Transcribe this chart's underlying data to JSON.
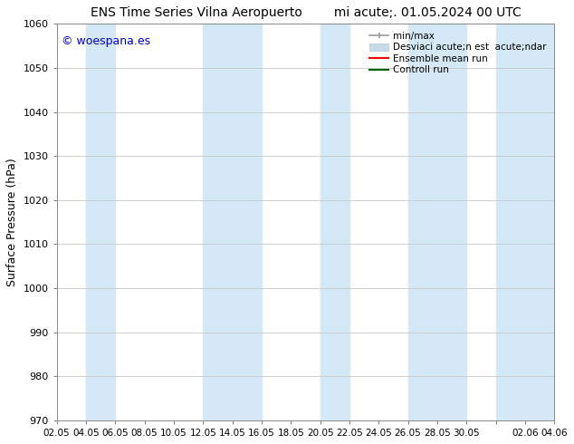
{
  "title": "ENS Time Series Vilna Aeropuerto        mi acute;. 01.05.2024 00 UTC",
  "ylabel": "Surface Pressure (hPa)",
  "ylim": [
    970,
    1060
  ],
  "yticks": [
    970,
    980,
    990,
    1000,
    1010,
    1020,
    1030,
    1040,
    1050,
    1060
  ],
  "xtick_labels": [
    "02.05",
    "04.05",
    "06.05",
    "08.05",
    "10.05",
    "12.05",
    "14.05",
    "16.05",
    "18.05",
    "20.05",
    "22.05",
    "24.05",
    "26.05",
    "28.05",
    "30.05",
    "",
    "02.06",
    "04.06"
  ],
  "watermark": "© woespana.es",
  "watermark_color": "#0000cc",
  "bg_color": "#ffffff",
  "plot_bg_color": "#ffffff",
  "grid_color": "#c8c8c8",
  "band_color": "#d4e8f5",
  "band_alpha": 1.0,
  "legend_items": [
    {
      "label": "min/max",
      "color": "#aaaaaa"
    },
    {
      "label": "Desviaci acute;n est  acute;ndar",
      "color": "#c8dce8"
    },
    {
      "label": "Ensemble mean run",
      "color": "#ff0000"
    },
    {
      "label": "Controll run",
      "color": "#006600"
    }
  ],
  "band_tick_ranges": [
    [
      1,
      2
    ],
    [
      5,
      6
    ],
    [
      6,
      7
    ],
    [
      9,
      10
    ],
    [
      12,
      13
    ],
    [
      13,
      14
    ],
    [
      15,
      17
    ]
  ],
  "title_fontsize": 10,
  "watermark_fontsize": 9
}
